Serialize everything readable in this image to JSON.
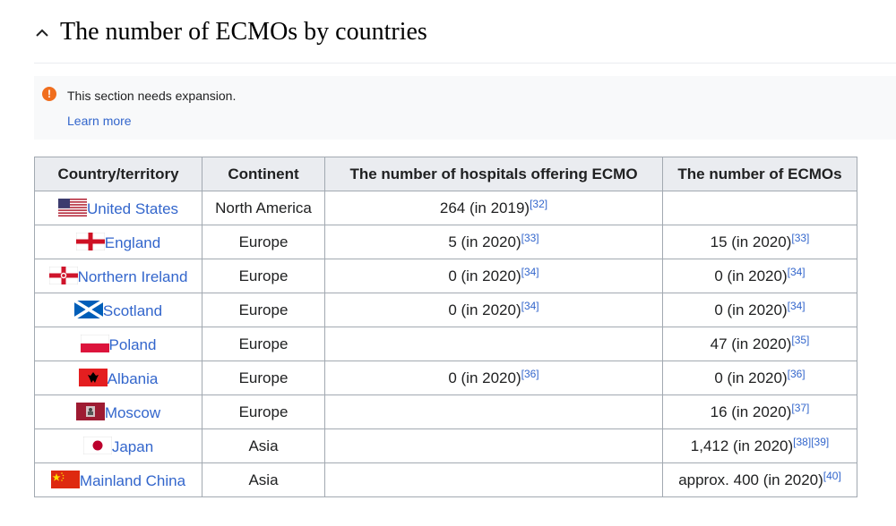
{
  "section": {
    "title": "The number of ECMOs by countries",
    "collapse_icon": "chevron-up-icon"
  },
  "notice": {
    "icon": "warning-icon",
    "icon_color": "#f06e1e",
    "text": "This section needs expansion.",
    "link": "Learn more"
  },
  "table": {
    "headers": [
      "Country/territory",
      "Continent",
      "The number of hospitals offering ECMO",
      "The number of ECMOs"
    ],
    "rows": [
      {
        "country": "United States",
        "flag": "us-flag-icon",
        "continent": "North America",
        "hospitals": "264 (in 2019)",
        "hospitals_ref": "[32]",
        "ecmos": "",
        "ecmos_ref": ""
      },
      {
        "country": "England",
        "flag": "england-flag-icon",
        "continent": "Europe",
        "hospitals": "5 (in 2020)",
        "hospitals_ref": "[33]",
        "ecmos": "15 (in 2020)",
        "ecmos_ref": "[33]"
      },
      {
        "country": "Northern Ireland",
        "flag": "northern-ireland-flag-icon",
        "continent": "Europe",
        "hospitals": "0 (in 2020)",
        "hospitals_ref": "[34]",
        "ecmos": "0 (in 2020)",
        "ecmos_ref": "[34]"
      },
      {
        "country": "Scotland",
        "flag": "scotland-flag-icon",
        "continent": "Europe",
        "hospitals": "0 (in 2020)",
        "hospitals_ref": "[34]",
        "ecmos": "0 (in 2020)",
        "ecmos_ref": "[34]"
      },
      {
        "country": "Poland",
        "flag": "poland-flag-icon",
        "continent": "Europe",
        "hospitals": "",
        "hospitals_ref": "",
        "ecmos": "47 (in 2020)",
        "ecmos_ref": "[35]"
      },
      {
        "country": "Albania",
        "flag": "albania-flag-icon",
        "continent": "Europe",
        "hospitals": "0 (in 2020)",
        "hospitals_ref": "[36]",
        "ecmos": "0 (in 2020)",
        "ecmos_ref": "[36]"
      },
      {
        "country": "Moscow",
        "flag": "moscow-flag-icon",
        "continent": "Europe",
        "hospitals": "",
        "hospitals_ref": "",
        "ecmos": "16 (in 2020)",
        "ecmos_ref": "[37]"
      },
      {
        "country": "Japan",
        "flag": "japan-flag-icon",
        "continent": "Asia",
        "hospitals": "",
        "hospitals_ref": "",
        "ecmos": "1,412 (in 2020)",
        "ecmos_ref": "[38][39]"
      },
      {
        "country": "Mainland China",
        "flag": "china-flag-icon",
        "continent": "Asia",
        "hospitals": "",
        "hospitals_ref": "",
        "ecmos": "approx. 400 (in 2020)",
        "ecmos_ref": "[40]"
      }
    ]
  },
  "colors": {
    "link": "#3366cc",
    "header_bg": "#eaecf0",
    "border": "#a2a9b1"
  }
}
